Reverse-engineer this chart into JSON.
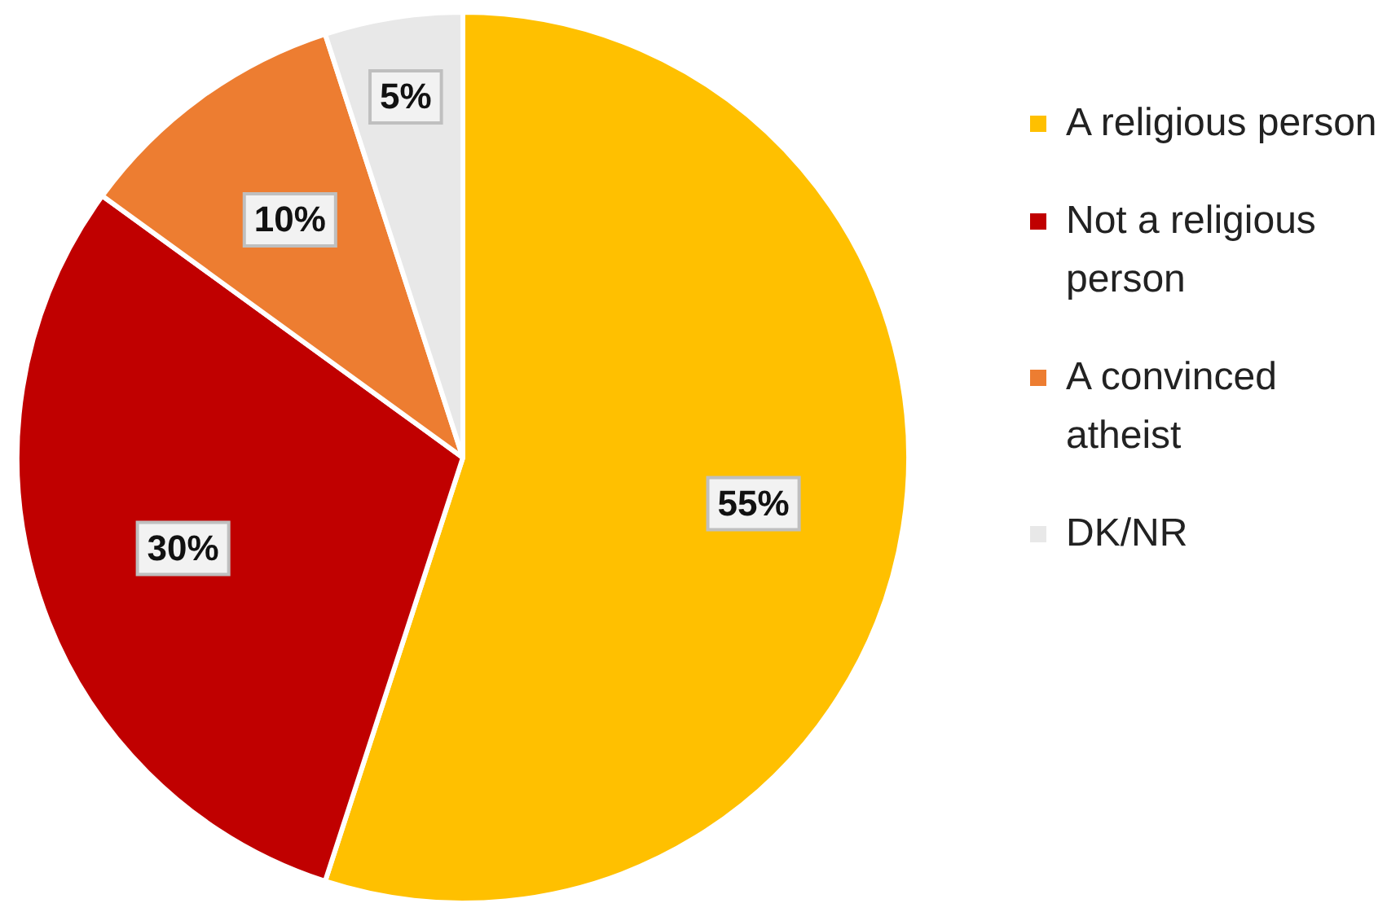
{
  "chart_data": {
    "type": "pie",
    "categories": [
      "A religious person",
      "Not a religious person",
      "A convinced atheist",
      "DK/NR"
    ],
    "values": [
      55,
      30,
      10,
      5
    ],
    "colors": [
      "#ffc000",
      "#c00000",
      "#ed7d31",
      "#e8e8e8"
    ],
    "value_labels": [
      "55%",
      "30%",
      "10%",
      "5%"
    ],
    "legend": "right"
  }
}
